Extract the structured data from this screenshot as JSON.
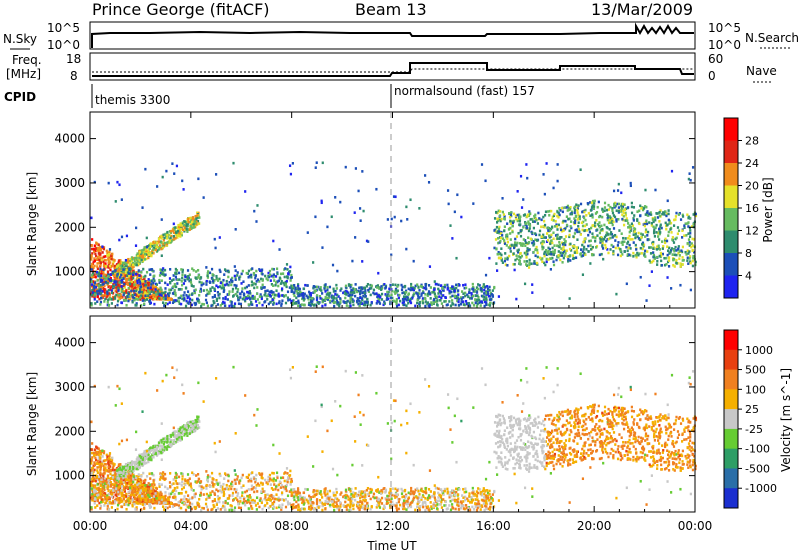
{
  "header": {
    "station": "Prince George (fitACF)",
    "beam": "Beam 13",
    "date": "13/Mar/2009"
  },
  "nsky_panel": {
    "left_label": "N.Sky",
    "left_ticks": [
      "10^5",
      "10^0"
    ],
    "right_ticks": [
      "10^5",
      "10^0"
    ],
    "right_label": "N.Search"
  },
  "freq_panel": {
    "left_label_line1": "Freq.",
    "left_label_line2": "[MHz]",
    "left_ticks": [
      "18",
      "8"
    ],
    "right_ticks": [
      "60",
      "0"
    ],
    "right_label": "Nave"
  },
  "cpid": {
    "label": "CPID",
    "segments": [
      {
        "text": "themis 3300",
        "start_hour": 0
      },
      {
        "text": "normalsound (fast) 157",
        "start_hour": 12
      }
    ]
  },
  "chart_data": [
    {
      "type": "heatmap",
      "name": "power",
      "xlabel": "",
      "ylabel": "Slant Range [km]",
      "xlim": [
        0,
        24
      ],
      "ylim": [
        180,
        4600
      ],
      "yticks": [
        "1000",
        "2000",
        "3000",
        "4000"
      ],
      "colorbar_label": "Power [dB]",
      "colorbar_ticks": [
        "4",
        "8",
        "12",
        "16",
        "20",
        "24",
        "28"
      ],
      "colors": [
        "#1f24f0",
        "#1c4fb8",
        "#2e8c6e",
        "#66bb60",
        "#e5e12a",
        "#f08c1c",
        "#e02616",
        "#ff0000"
      ],
      "features": [
        {
          "desc": "strong near-range echo band",
          "x0": 0.0,
          "x1": 3.2,
          "y0": 250,
          "y1": 1800,
          "level": 0.85
        },
        {
          "desc": "rising F-region echo arc",
          "x0": 1.0,
          "x1": 4.3,
          "y0": 900,
          "y1": 2300,
          "level": 0.55
        },
        {
          "desc": "near-range patchy echoes",
          "x0": 0.0,
          "x1": 16.0,
          "y0": 250,
          "y1": 1000,
          "level": 0.35
        },
        {
          "desc": "afternoon echo band",
          "x0": 16.0,
          "x1": 24.0,
          "y0": 1200,
          "y1": 2500,
          "level": 0.4
        }
      ]
    },
    {
      "type": "heatmap",
      "name": "velocity",
      "xlabel": "Time UT",
      "ylabel": "Slant Range [km]",
      "xlim": [
        0,
        24
      ],
      "ylim": [
        180,
        4600
      ],
      "xticks": [
        "00:00",
        "04:00",
        "08:00",
        "12:00",
        "16:00",
        "20:00",
        "00:00"
      ],
      "yticks": [
        "1000",
        "2000",
        "3000",
        "4000"
      ],
      "colorbar_label": "Velocity [m s^-1]",
      "colorbar_ticks": [
        "1000",
        "500",
        "100",
        "25",
        "-25",
        "-100",
        "-500",
        "-1000"
      ],
      "colors": [
        "#1b2fd0",
        "#2a6ea8",
        "#2e9e66",
        "#66cc33",
        "#c8c8c8",
        "#f5b000",
        "#f08020",
        "#e84010",
        "#ff0000"
      ]
    }
  ]
}
